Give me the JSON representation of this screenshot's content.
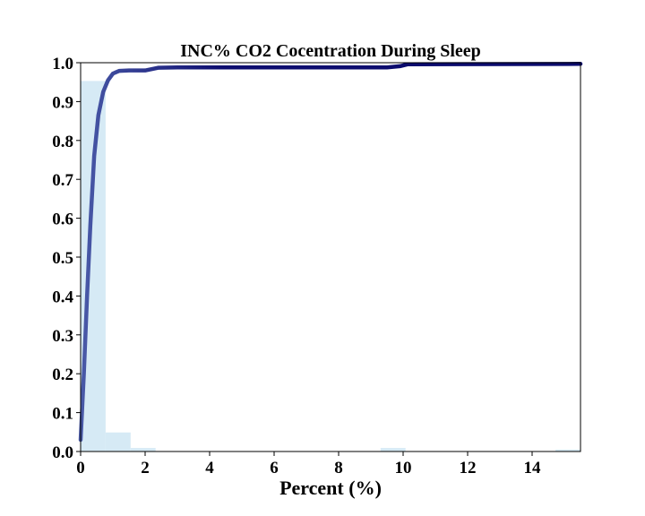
{
  "chart_data": {
    "type": "bar",
    "title": "INC% CO2 Cocentration During Sleep",
    "xlabel": "Percent (%)",
    "ylabel": "",
    "xlim": [
      0,
      15.5
    ],
    "ylim": [
      0,
      1.0
    ],
    "xticks": [
      "0",
      "2",
      "4",
      "6",
      "8",
      "10",
      "12",
      "14"
    ],
    "yticks": [
      "0.0",
      "0.1",
      "0.2",
      "0.3",
      "0.4",
      "0.5",
      "0.6",
      "0.7",
      "0.8",
      "0.9",
      "1.0"
    ],
    "grid": false,
    "histogram": {
      "bin_width": 0.775,
      "bins": [
        {
          "x0": 0.0,
          "value": 0.953
        },
        {
          "x0": 0.775,
          "value": 0.049
        },
        {
          "x0": 1.55,
          "value": 0.009
        },
        {
          "x0": 9.3,
          "value": 0.009
        },
        {
          "x0": 14.725,
          "value": 0.005
        }
      ],
      "color": "#d6eaf5"
    },
    "cumulative_line": {
      "color_start": "#4a5aa8",
      "color_end": "#0b0b6e",
      "points": [
        [
          0.0,
          0.03
        ],
        [
          0.1,
          0.2
        ],
        [
          0.2,
          0.4
        ],
        [
          0.3,
          0.58
        ],
        [
          0.42,
          0.76
        ],
        [
          0.55,
          0.865
        ],
        [
          0.7,
          0.925
        ],
        [
          0.85,
          0.955
        ],
        [
          1.0,
          0.972
        ],
        [
          1.2,
          0.979
        ],
        [
          1.5,
          0.98
        ],
        [
          2.0,
          0.98
        ],
        [
          2.4,
          0.987
        ],
        [
          3.0,
          0.988
        ],
        [
          9.5,
          0.988
        ],
        [
          9.9,
          0.991
        ],
        [
          10.15,
          0.996
        ],
        [
          15.5,
          0.997
        ]
      ]
    }
  }
}
